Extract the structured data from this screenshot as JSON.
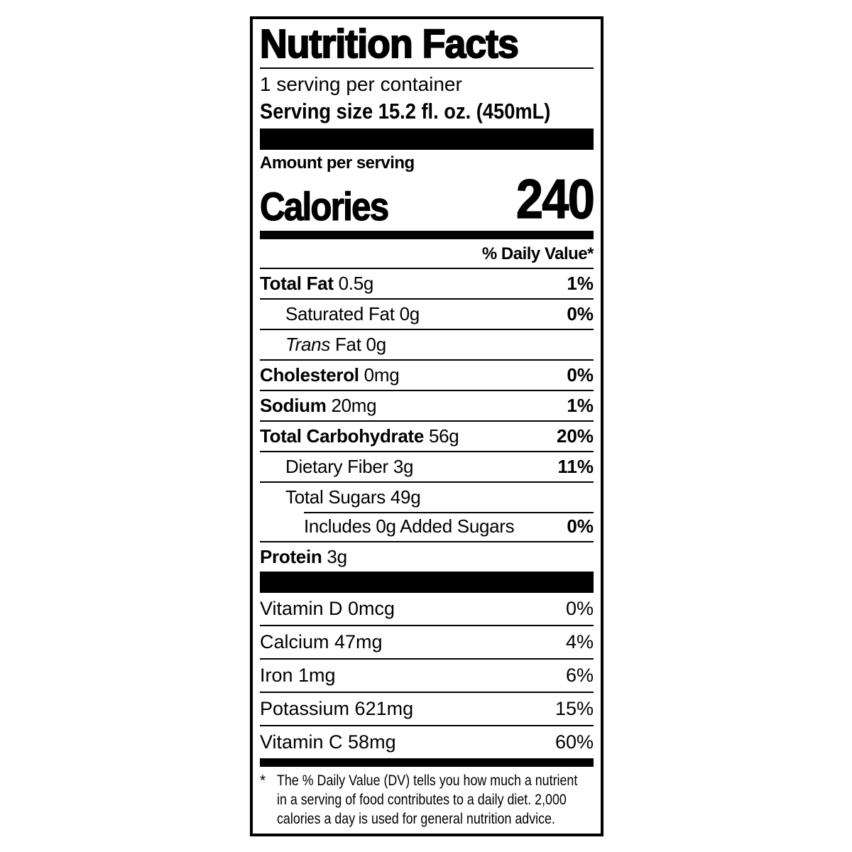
{
  "label": {
    "title": "Nutrition Facts",
    "servings_per_container": "1 serving per container",
    "serving_size": {
      "label": "Serving size",
      "value": "15.2 fl. oz. (450mL)"
    },
    "amount_per_serving": "Amount per serving",
    "calories": {
      "label": "Calories",
      "value": "240"
    },
    "daily_value_header": "% Daily Value*",
    "nutrients": [
      {
        "name": "Total Fat",
        "amount": "0.5g",
        "dv": "1%"
      },
      {
        "name": "Saturated Fat",
        "amount": "0g",
        "dv": "0%"
      },
      {
        "name": "Trans",
        "amount": "Fat 0g",
        "dv": ""
      },
      {
        "name": "Cholesterol",
        "amount": "0mg",
        "dv": "0%"
      },
      {
        "name": "Sodium",
        "amount": "20mg",
        "dv": "1%"
      },
      {
        "name": "Total Carbohydrate",
        "amount": "56g",
        "dv": "20%"
      },
      {
        "name": "Dietary Fiber",
        "amount": "3g",
        "dv": "11%"
      },
      {
        "name": "Total Sugars",
        "amount": "49g",
        "dv": ""
      },
      {
        "name": "Includes 0g Added Sugars",
        "amount": "",
        "dv": "0%"
      },
      {
        "name": "Protein",
        "amount": "3g",
        "dv": ""
      }
    ],
    "micronutrients": [
      {
        "name": "Vitamin D 0mcg",
        "dv": "0%"
      },
      {
        "name": "Calcium 47mg",
        "dv": "4%"
      },
      {
        "name": "Iron 1mg",
        "dv": "6%"
      },
      {
        "name": "Potassium 621mg",
        "dv": "15%"
      },
      {
        "name": "Vitamin C 58mg",
        "dv": "60%"
      }
    ],
    "footnote": {
      "marker": "*",
      "lines": [
        "The % Daily Value (DV) tells you how much a nutrient",
        "in a serving of food contributes to a daily diet. 2,000",
        "calories a day is used for general nutrition advice."
      ]
    }
  }
}
